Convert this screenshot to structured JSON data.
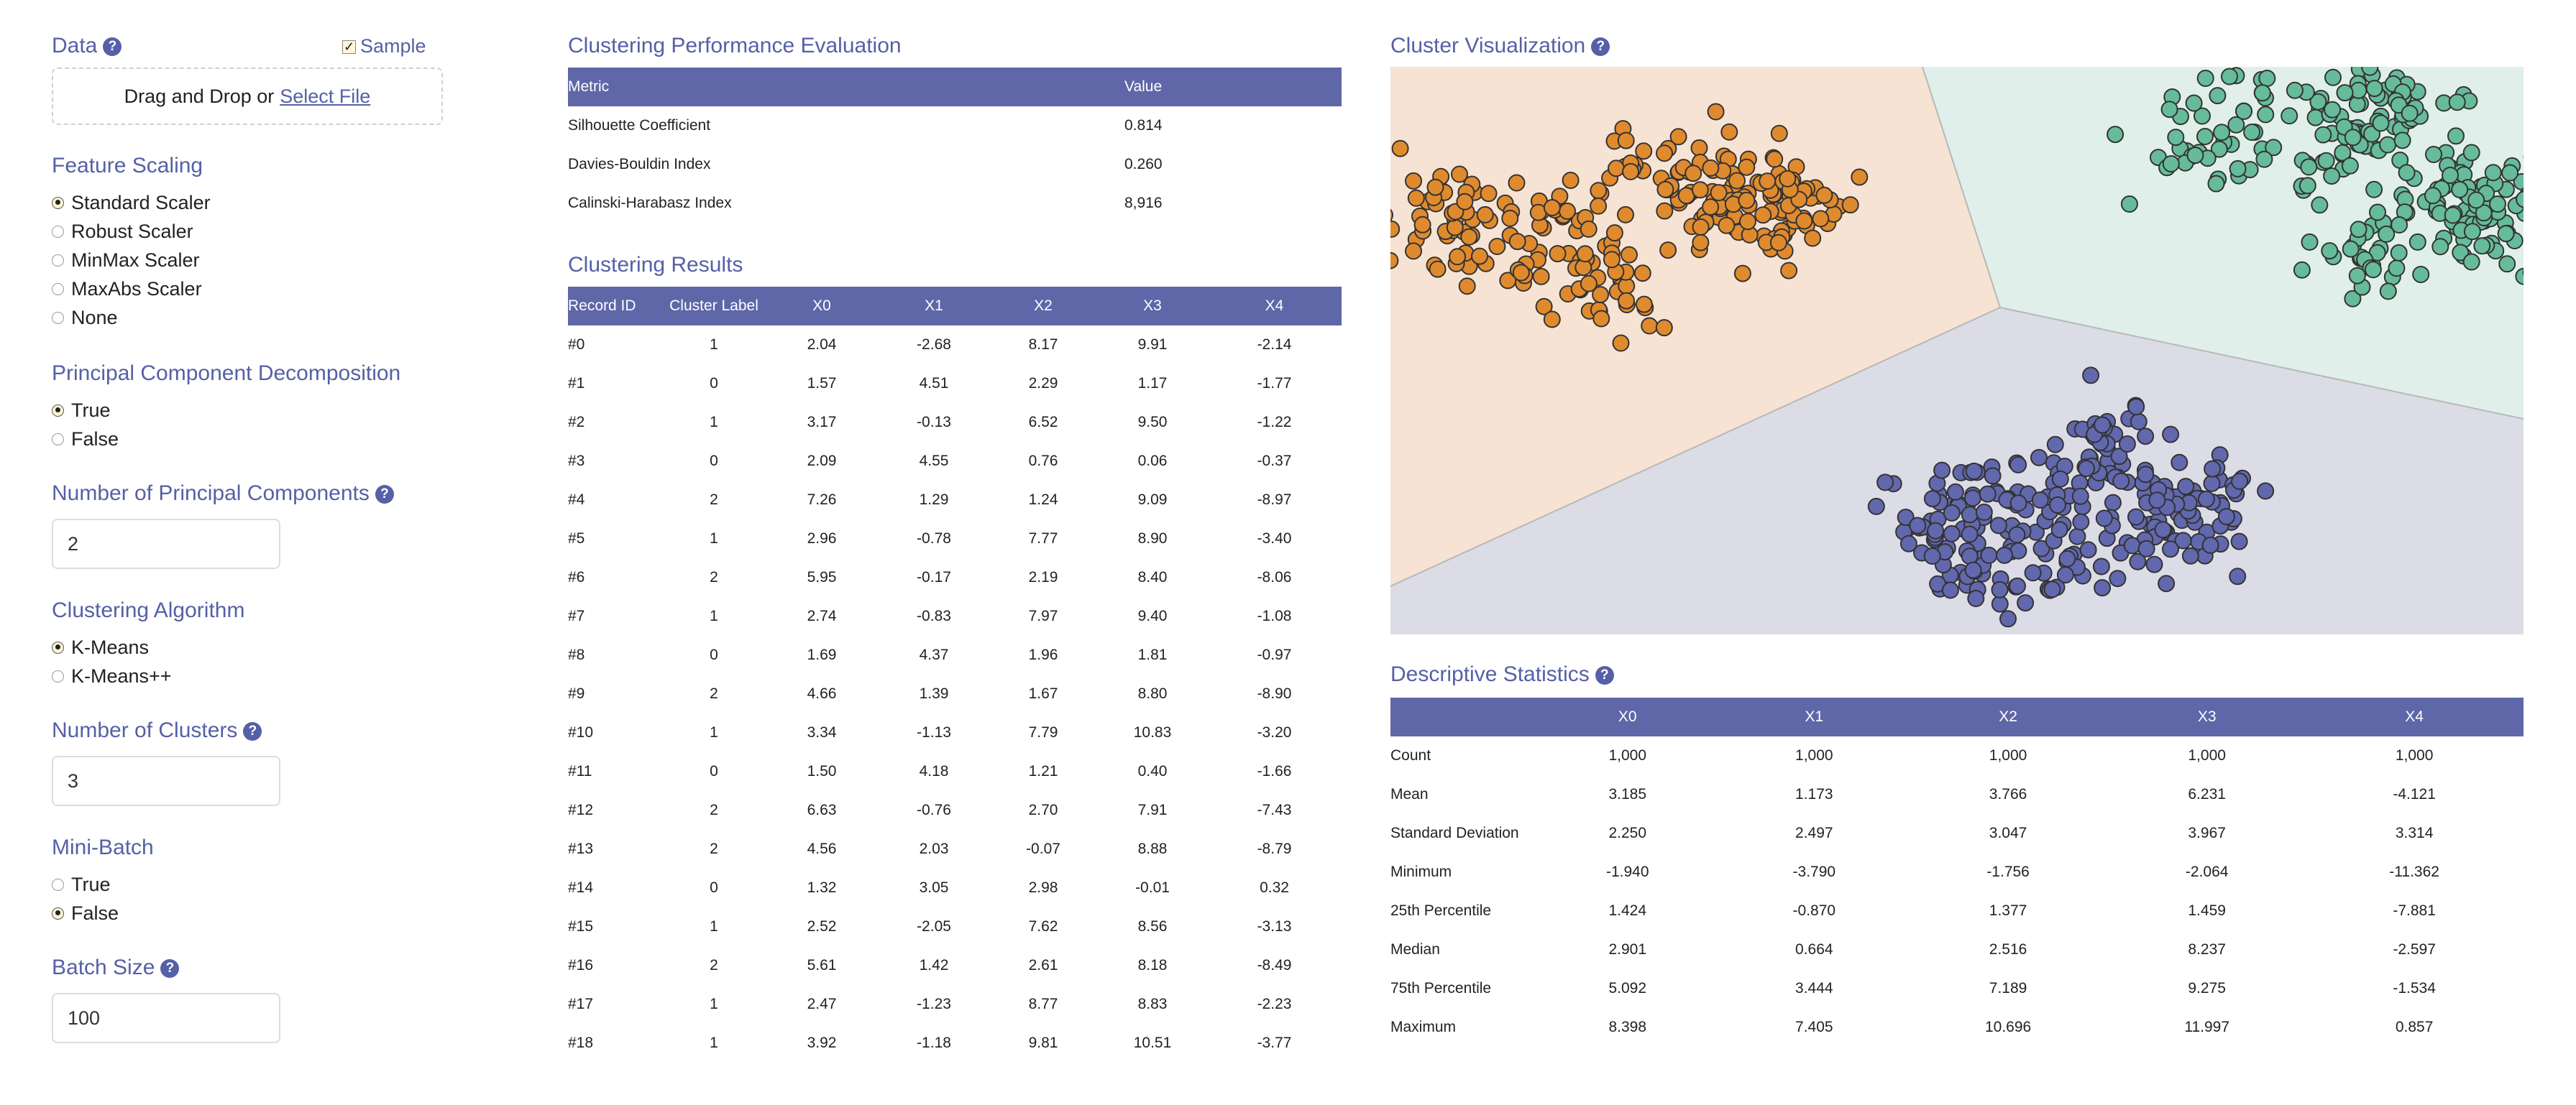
{
  "data_section": {
    "title": "Data",
    "sample_label": "Sample",
    "sample_checked": true,
    "drop_text": "Drag and Drop or",
    "select_file": "Select File"
  },
  "feature_scaling": {
    "title": "Feature Scaling",
    "options": [
      "Standard Scaler",
      "Robust Scaler",
      "MinMax Scaler",
      "MaxAbs Scaler",
      "None"
    ],
    "selected": "Standard Scaler"
  },
  "pca": {
    "title": "Principal Component Decomposition",
    "options": [
      "True",
      "False"
    ],
    "selected": "True"
  },
  "num_components": {
    "title": "Number of Principal Components",
    "value": "2"
  },
  "algorithm": {
    "title": "Clustering Algorithm",
    "options": [
      "K-Means",
      "K-Means++"
    ],
    "selected": "K-Means"
  },
  "num_clusters": {
    "title": "Number of Clusters",
    "value": "3"
  },
  "mini_batch": {
    "title": "Mini-Batch",
    "options": [
      "True",
      "False"
    ],
    "selected": "False"
  },
  "batch_size": {
    "title": "Batch Size",
    "value": "100"
  },
  "performance": {
    "title": "Clustering Performance Evaluation",
    "headers": [
      "Metric",
      "Value"
    ],
    "rows": [
      [
        "Silhouette Coefficient",
        "0.814"
      ],
      [
        "Davies-Bouldin Index",
        "0.260"
      ],
      [
        "Calinski-Harabasz Index",
        "8,916"
      ]
    ]
  },
  "results": {
    "title": "Clustering Results",
    "headers": [
      "Record ID",
      "Cluster Label",
      "X0",
      "X1",
      "X2",
      "X3",
      "X4"
    ],
    "rows": [
      [
        "#0",
        "1",
        "2.04",
        "-2.68",
        "8.17",
        "9.91",
        "-2.14"
      ],
      [
        "#1",
        "0",
        "1.57",
        "4.51",
        "2.29",
        "1.17",
        "-1.77"
      ],
      [
        "#2",
        "1",
        "3.17",
        "-0.13",
        "6.52",
        "9.50",
        "-1.22"
      ],
      [
        "#3",
        "0",
        "2.09",
        "4.55",
        "0.76",
        "0.06",
        "-0.37"
      ],
      [
        "#4",
        "2",
        "7.26",
        "1.29",
        "1.24",
        "9.09",
        "-8.97"
      ],
      [
        "#5",
        "1",
        "2.96",
        "-0.78",
        "7.77",
        "8.90",
        "-3.40"
      ],
      [
        "#6",
        "2",
        "5.95",
        "-0.17",
        "2.19",
        "8.40",
        "-8.06"
      ],
      [
        "#7",
        "1",
        "2.74",
        "-0.83",
        "7.97",
        "9.40",
        "-1.08"
      ],
      [
        "#8",
        "0",
        "1.69",
        "4.37",
        "1.96",
        "1.81",
        "-0.97"
      ],
      [
        "#9",
        "2",
        "4.66",
        "1.39",
        "1.67",
        "8.80",
        "-8.90"
      ],
      [
        "#10",
        "1",
        "3.34",
        "-1.13",
        "7.79",
        "10.83",
        "-3.20"
      ],
      [
        "#11",
        "0",
        "1.50",
        "4.18",
        "1.21",
        "0.40",
        "-1.66"
      ],
      [
        "#12",
        "2",
        "6.63",
        "-0.76",
        "2.70",
        "7.91",
        "-7.43"
      ],
      [
        "#13",
        "2",
        "4.56",
        "2.03",
        "-0.07",
        "8.88",
        "-8.79"
      ],
      [
        "#14",
        "0",
        "1.32",
        "3.05",
        "2.98",
        "-0.01",
        "0.32"
      ],
      [
        "#15",
        "1",
        "2.52",
        "-2.05",
        "7.62",
        "8.56",
        "-3.13"
      ],
      [
        "#16",
        "2",
        "5.61",
        "1.42",
        "2.61",
        "8.18",
        "-8.49"
      ],
      [
        "#17",
        "1",
        "2.47",
        "-1.23",
        "8.77",
        "8.83",
        "-2.23"
      ],
      [
        "#18",
        "1",
        "3.92",
        "-1.18",
        "9.81",
        "10.51",
        "-3.77"
      ]
    ]
  },
  "visualization": {
    "title": "Cluster Visualization",
    "colors": {
      "region_orange": "#f6e3d3",
      "region_teal": "#e0efea",
      "region_purple": "#dcdce6",
      "point_orange": "#e08a2e",
      "point_teal": "#66bb9b",
      "point_purple": "#6268ae"
    }
  },
  "descriptive": {
    "title": "Descriptive Statistics",
    "headers": [
      "",
      "X0",
      "X1",
      "X2",
      "X3",
      "X4"
    ],
    "rows": [
      [
        "Count",
        "1,000",
        "1,000",
        "1,000",
        "1,000",
        "1,000"
      ],
      [
        "Mean",
        "3.185",
        "1.173",
        "3.766",
        "6.231",
        "-4.121"
      ],
      [
        "Standard Deviation",
        "2.250",
        "2.497",
        "3.047",
        "3.967",
        "3.314"
      ],
      [
        "Minimum",
        "-1.940",
        "-3.790",
        "-1.756",
        "-2.064",
        "-11.362"
      ],
      [
        "25th Percentile",
        "1.424",
        "-0.870",
        "1.377",
        "1.459",
        "-7.881"
      ],
      [
        "Median",
        "2.901",
        "0.664",
        "2.516",
        "8.237",
        "-2.597"
      ],
      [
        "75th Percentile",
        "5.092",
        "3.444",
        "7.189",
        "9.275",
        "-1.534"
      ],
      [
        "Maximum",
        "8.398",
        "7.405",
        "10.696",
        "11.997",
        "0.857"
      ]
    ]
  }
}
